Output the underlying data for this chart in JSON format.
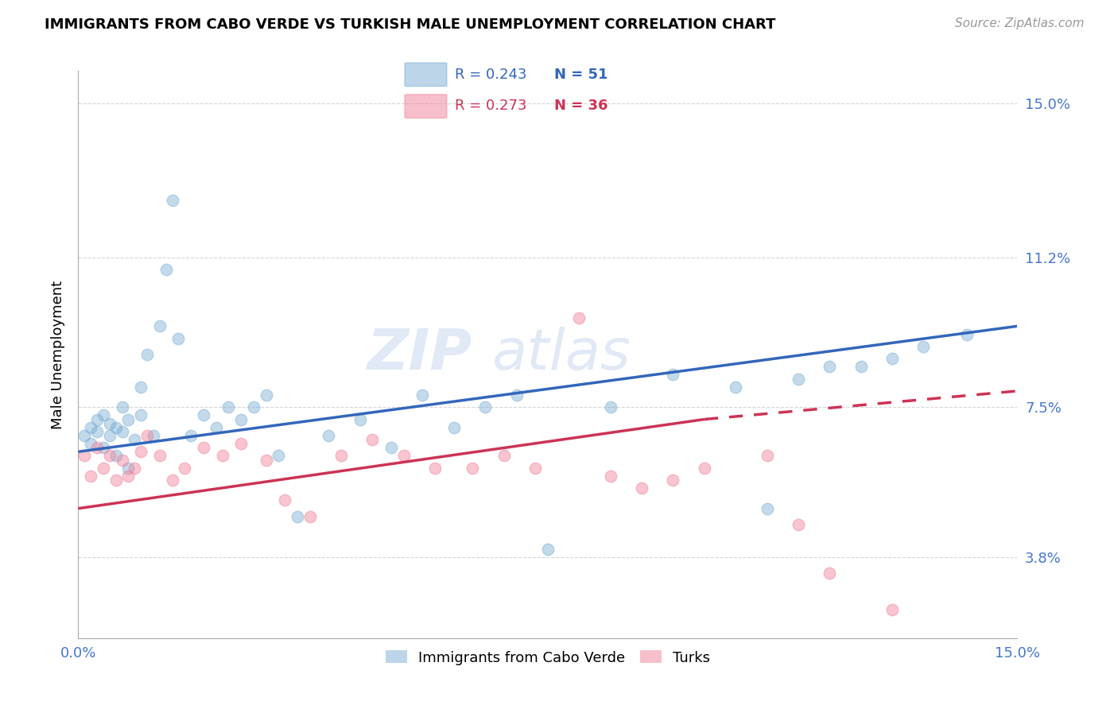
{
  "title": "IMMIGRANTS FROM CABO VERDE VS TURKISH MALE UNEMPLOYMENT CORRELATION CHART",
  "source": "Source: ZipAtlas.com",
  "ylabel": "Male Unemployment",
  "xlim": [
    0,
    0.15
  ],
  "ylim": [
    0.018,
    0.158
  ],
  "yticks": [
    0.038,
    0.075,
    0.112,
    0.15
  ],
  "ytick_labels": [
    "3.8%",
    "7.5%",
    "11.2%",
    "15.0%"
  ],
  "xticks": [
    0.0,
    0.05,
    0.1,
    0.15
  ],
  "xtick_labels": [
    "0.0%",
    "",
    "",
    "15.0%"
  ],
  "series1_name": "Immigrants from Cabo Verde",
  "series1_R": "0.243",
  "series1_N": "51",
  "series1_color": "#7aadd4",
  "series2_name": "Turks",
  "series2_R": "0.273",
  "series2_N": "36",
  "series2_color": "#f08098",
  "background_color": "#ffffff",
  "grid_color": "#cccccc",
  "axis_label_color": "#4477cc",
  "trend1_color": "#3366bb",
  "trend2_color": "#cc3355",
  "watermark_text": "ZIP",
  "watermark_text2": "atlas",
  "series1_x": [
    0.001,
    0.002,
    0.002,
    0.003,
    0.003,
    0.004,
    0.004,
    0.005,
    0.005,
    0.006,
    0.006,
    0.007,
    0.007,
    0.008,
    0.008,
    0.009,
    0.01,
    0.01,
    0.011,
    0.012,
    0.013,
    0.014,
    0.015,
    0.016,
    0.018,
    0.02,
    0.022,
    0.024,
    0.026,
    0.028,
    0.03,
    0.032,
    0.035,
    0.04,
    0.045,
    0.05,
    0.055,
    0.06,
    0.065,
    0.07,
    0.075,
    0.085,
    0.095,
    0.105,
    0.11,
    0.115,
    0.12,
    0.125,
    0.13,
    0.135,
    0.142
  ],
  "series1_y": [
    0.068,
    0.07,
    0.066,
    0.069,
    0.072,
    0.065,
    0.073,
    0.068,
    0.071,
    0.063,
    0.07,
    0.075,
    0.069,
    0.072,
    0.06,
    0.067,
    0.073,
    0.08,
    0.088,
    0.068,
    0.095,
    0.109,
    0.126,
    0.092,
    0.068,
    0.073,
    0.07,
    0.075,
    0.072,
    0.075,
    0.078,
    0.063,
    0.048,
    0.068,
    0.072,
    0.065,
    0.078,
    0.07,
    0.075,
    0.078,
    0.04,
    0.075,
    0.083,
    0.08,
    0.05,
    0.082,
    0.085,
    0.085,
    0.087,
    0.09,
    0.093
  ],
  "series2_x": [
    0.001,
    0.002,
    0.003,
    0.004,
    0.005,
    0.006,
    0.007,
    0.008,
    0.009,
    0.01,
    0.011,
    0.013,
    0.015,
    0.017,
    0.02,
    0.023,
    0.026,
    0.03,
    0.033,
    0.037,
    0.042,
    0.047,
    0.052,
    0.057,
    0.063,
    0.068,
    0.073,
    0.08,
    0.085,
    0.09,
    0.095,
    0.1,
    0.11,
    0.115,
    0.12,
    0.13
  ],
  "series2_y": [
    0.063,
    0.058,
    0.065,
    0.06,
    0.063,
    0.057,
    0.062,
    0.058,
    0.06,
    0.064,
    0.068,
    0.063,
    0.057,
    0.06,
    0.065,
    0.063,
    0.066,
    0.062,
    0.052,
    0.048,
    0.063,
    0.067,
    0.063,
    0.06,
    0.06,
    0.063,
    0.06,
    0.097,
    0.058,
    0.055,
    0.057,
    0.06,
    0.063,
    0.046,
    0.034,
    0.025
  ],
  "trend1_x0": 0.0,
  "trend1_y0": 0.064,
  "trend1_x1": 0.15,
  "trend1_y1": 0.095,
  "trend2_x0": 0.0,
  "trend2_y0": 0.05,
  "trend2_x1": 0.1,
  "trend2_y1": 0.072,
  "trend2_dash_x0": 0.1,
  "trend2_dash_y0": 0.072,
  "trend2_dash_x1": 0.15,
  "trend2_dash_y1": 0.079
}
